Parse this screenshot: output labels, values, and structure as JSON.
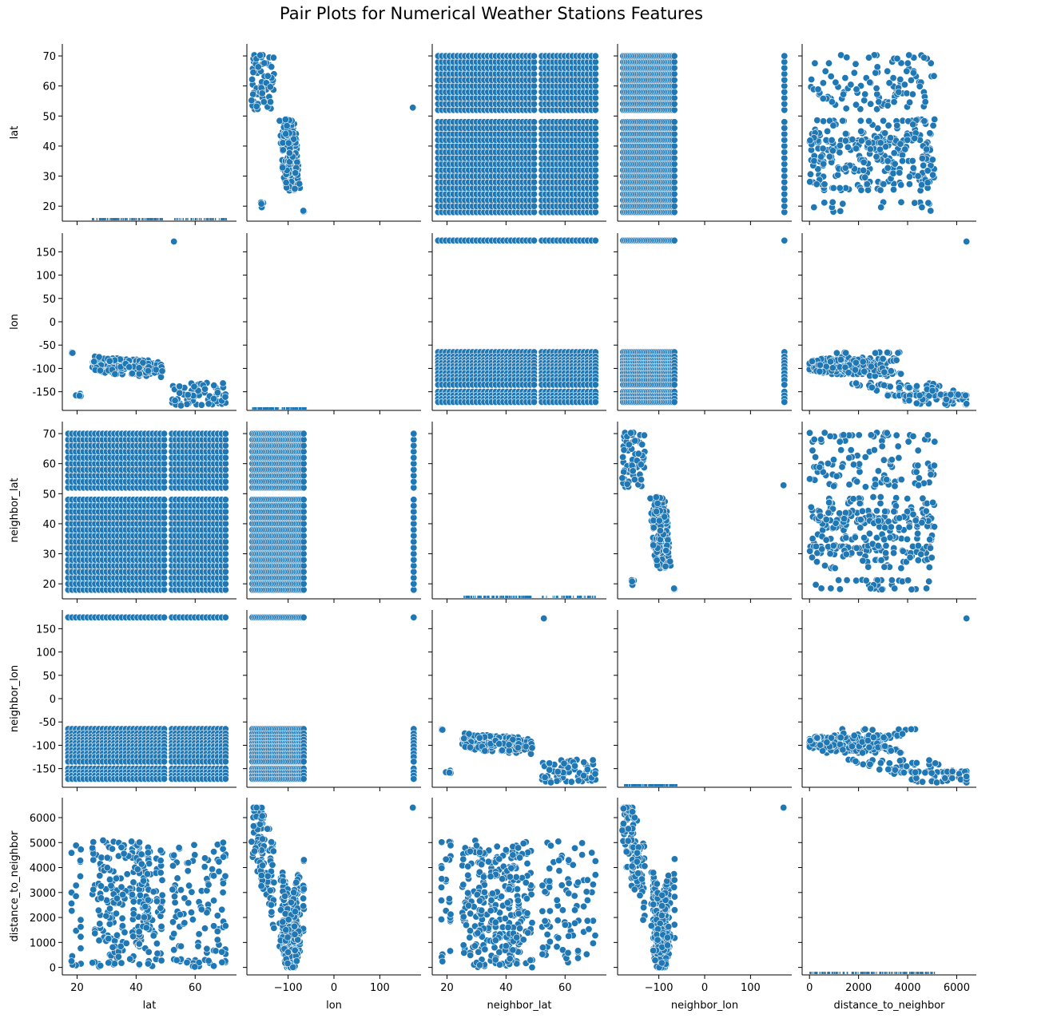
{
  "chart_data": {
    "type": "scatter",
    "kind": "pairplot",
    "title": "Pair Plots for Numerical Weather Stations Features",
    "variables": [
      "lat",
      "lon",
      "neighbor_lat",
      "neighbor_lon",
      "distance_to_neighbor"
    ],
    "diagonal": "rug",
    "point_color": "#1f77b4",
    "point_edge_color": "#ffffff",
    "axes": {
      "lat": {
        "lim": [
          15,
          74
        ],
        "ticks": [
          20,
          30,
          40,
          50,
          60,
          70
        ]
      },
      "lon": {
        "lim": [
          -190,
          190
        ],
        "ticks": [
          -150,
          -100,
          -50,
          0,
          50,
          100,
          150
        ]
      },
      "neighbor_lat": {
        "lim": [
          15,
          74
        ],
        "ticks": [
          20,
          30,
          40,
          50,
          60,
          70
        ]
      },
      "neighbor_lon": {
        "lim": [
          -190,
          190
        ],
        "ticks": [
          -150,
          -100,
          -50,
          0,
          50,
          100,
          150
        ]
      },
      "distance_to_neighbor": {
        "lim": [
          -300,
          6800
        ],
        "ticks": [
          0,
          1000,
          2000,
          3000,
          4000,
          5000,
          6000
        ]
      }
    },
    "x_tick_sets": {
      "lat": [
        20,
        40,
        60
      ],
      "lon": [
        -100,
        0,
        100
      ],
      "neighbor_lat": [
        20,
        40,
        60
      ],
      "neighbor_lon": [
        -100,
        0,
        100
      ],
      "distance_to_neighbor": [
        0,
        2000,
        4000,
        6000
      ]
    },
    "station_samples": {
      "lat_groups": [
        [
          18,
          22
        ],
        [
          25,
          49
        ],
        [
          52,
          71
        ]
      ],
      "alaska_lon": [
        -180,
        -130
      ],
      "conus_lon": [
        -125,
        -67
      ],
      "pr_lon": [
        -67,
        -65
      ],
      "hawaii_lon": [
        -160,
        -154
      ],
      "far_east_lon": [
        172,
        174
      ],
      "far_east_lat": 52.8
    }
  }
}
